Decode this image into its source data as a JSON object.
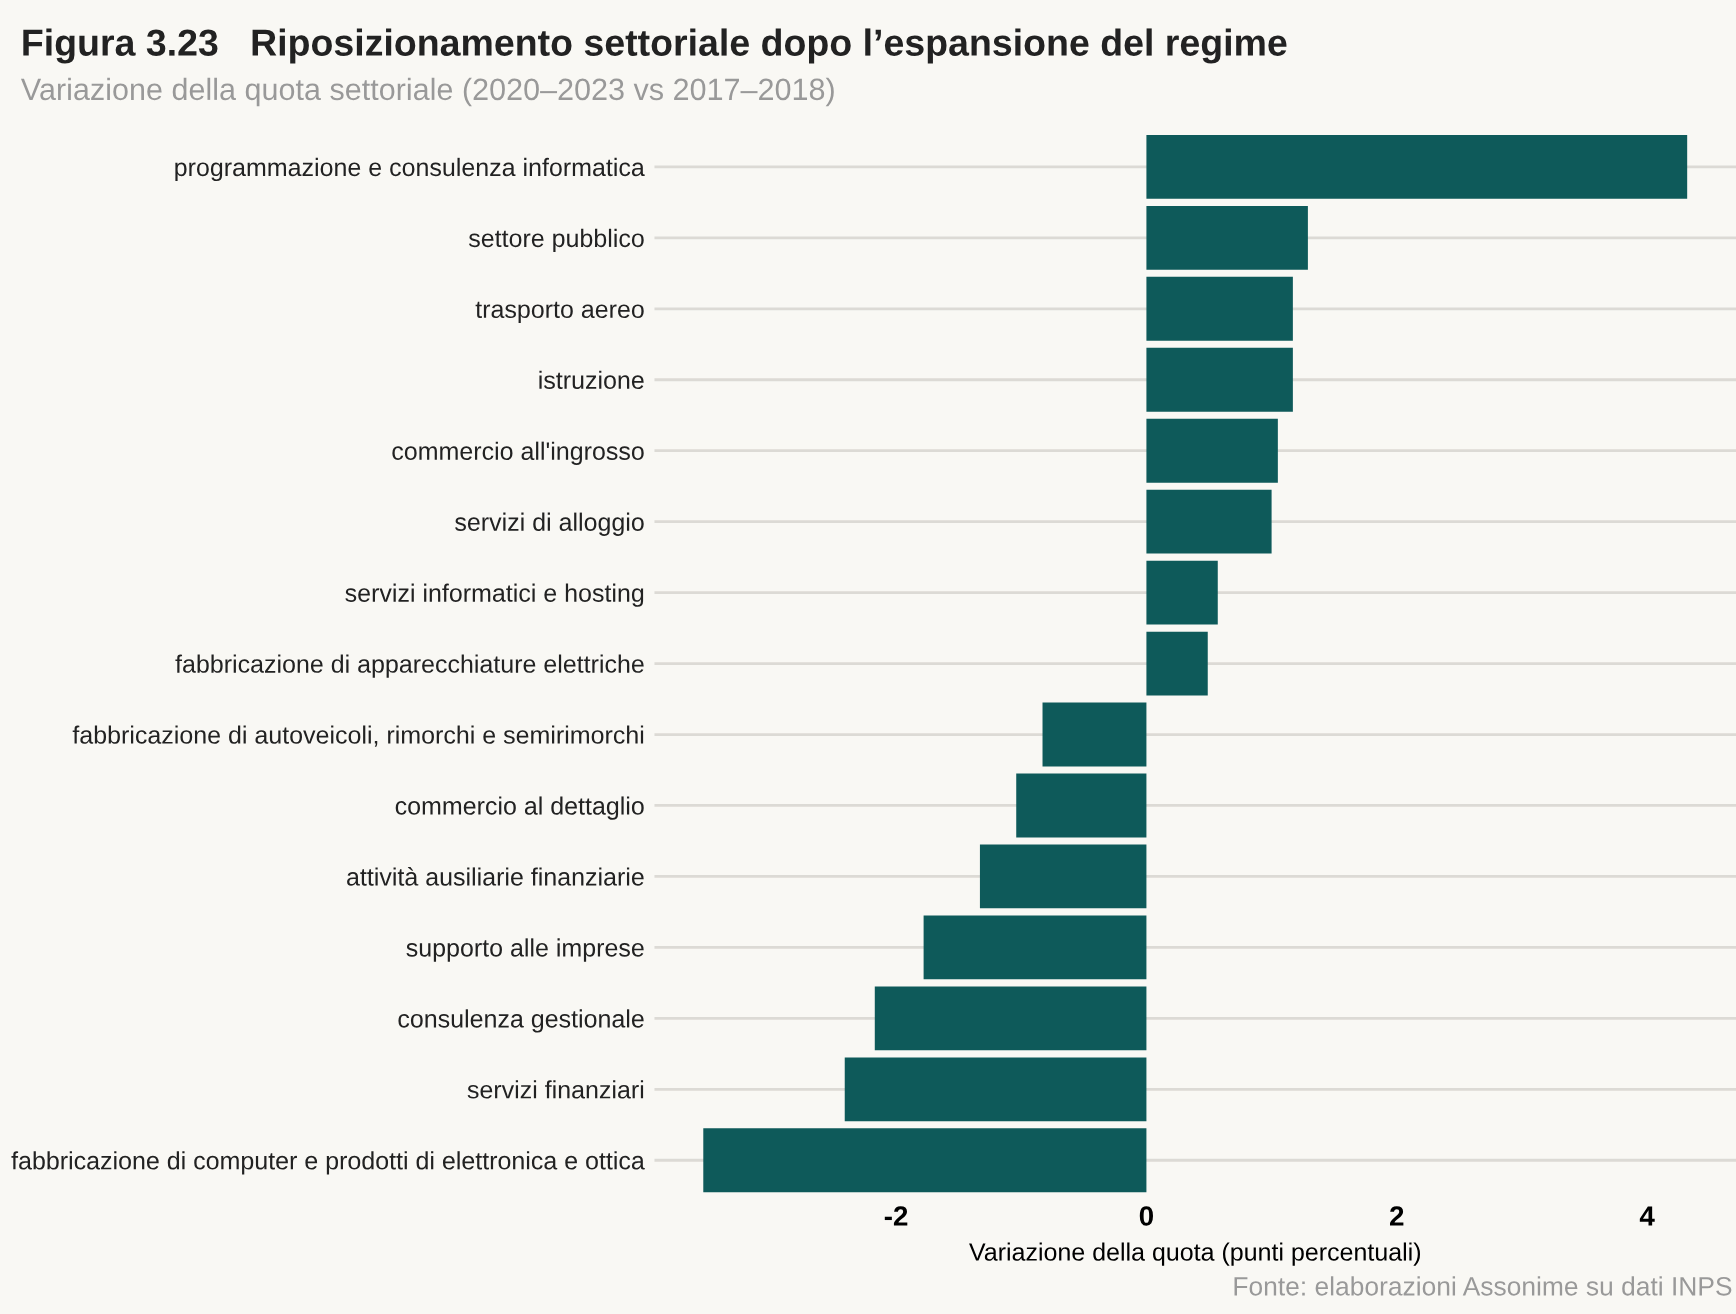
{
  "chart_data": {
    "type": "bar",
    "orientation": "horizontal",
    "title": "Figura 3.23   Riposizionamento settoriale dopo l’espansione del regime",
    "subtitle": "Variazione della quota settoriale (2020–2023 vs 2017–2018)",
    "xlabel": "Variazione della quota (punti percentuali)",
    "categories": [
      "programmazione e consulenza informatica",
      "settore pubblico",
      "trasporto aereo",
      "istruzione",
      "commercio all'ingrosso",
      "servizi di alloggio",
      "servizi informatici e hosting",
      "fabbricazione di apparecchiature elettriche",
      "fabbricazione di autoveicoli, rimorchi e semirimorchi",
      "commercio al dettaglio",
      "attività ausiliarie finanziarie",
      "supporto alle imprese",
      "consulenza gestionale",
      "servizi finanziari",
      "fabbricazione di computer e prodotti di elettronica e ottica"
    ],
    "values": [
      4.32,
      1.29,
      1.17,
      1.17,
      1.05,
      1.0,
      0.57,
      0.49,
      -0.83,
      -1.04,
      -1.33,
      -1.78,
      -2.17,
      -2.41,
      -3.54
    ],
    "color": "#0e5a5a",
    "xlim": [
      -3.93,
      4.71
    ],
    "xticks": [
      {
        "value": -2,
        "label": "-2"
      },
      0,
      2,
      4
    ],
    "grid": "y",
    "annotations": [
      "Fonte: elaborazioni Assonime su dati INPS"
    ]
  }
}
